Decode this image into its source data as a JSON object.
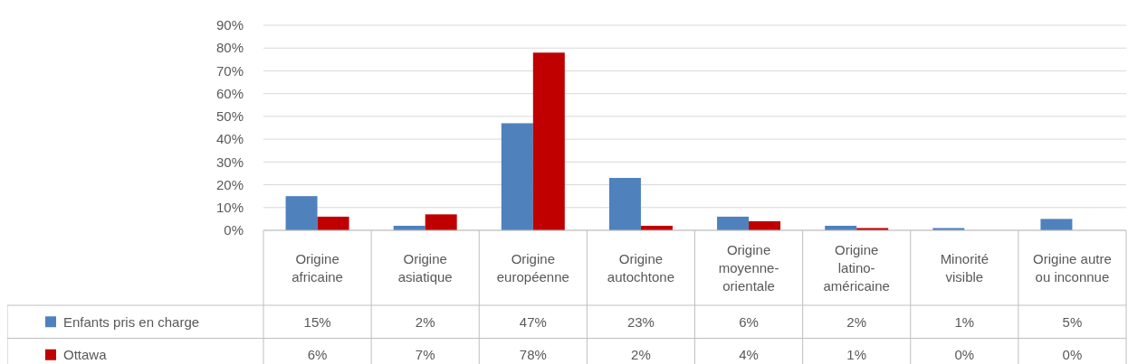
{
  "chart_data": {
    "type": "bar",
    "categories": [
      "Origine africaine",
      "Origine asiatique",
      "Origine européenne",
      "Origine autochtone",
      "Origine moyenne-orientale",
      "Origine latino-américaine",
      "Minorité visible",
      "Origine autre ou inconnue"
    ],
    "series": [
      {
        "name": "Enfants pris en charge",
        "color": "#4f81bd",
        "values": [
          15,
          2,
          47,
          23,
          6,
          2,
          1,
          5
        ],
        "value_labels": [
          "15%",
          "2%",
          "47%",
          "23%",
          "6%",
          "2%",
          "1%",
          "5%"
        ]
      },
      {
        "name": "Ottawa",
        "color": "#c00000",
        "values": [
          6,
          7,
          78,
          2,
          4,
          1,
          0,
          0
        ],
        "value_labels": [
          "6%",
          "7%",
          "78%",
          "2%",
          "4%",
          "1%",
          "0%",
          "0%"
        ]
      }
    ],
    "ylim": [
      0,
      90
    ],
    "yticks": [
      {
        "value": 0,
        "label": "0%"
      },
      {
        "value": 10,
        "label": "10%"
      },
      {
        "value": 20,
        "label": "20%"
      },
      {
        "value": 30,
        "label": "30%"
      },
      {
        "value": 40,
        "label": "40%"
      },
      {
        "value": 50,
        "label": "50%"
      },
      {
        "value": 60,
        "label": "60%"
      },
      {
        "value": 70,
        "label": "70%"
      },
      {
        "value": 80,
        "label": "80%"
      },
      {
        "value": 90,
        "label": "90%"
      }
    ],
    "grid": "y",
    "legend": "bottom left"
  }
}
